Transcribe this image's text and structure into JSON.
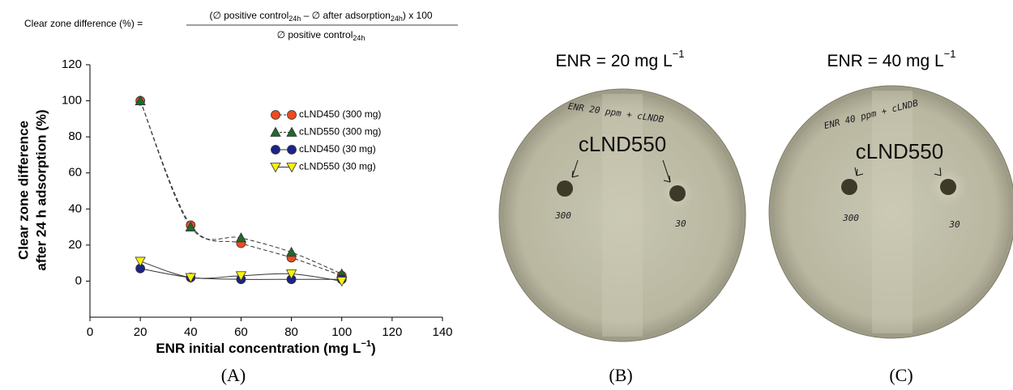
{
  "chart_data": {
    "type": "line",
    "formula": {
      "lhs": "Clear zone difference (%) =",
      "numerator": [
        "(∅ positive control",
        "24h",
        " – ∅ after adsorption",
        "24h",
        ") x 100"
      ],
      "denominator": [
        "∅ positive control",
        "24h"
      ]
    },
    "x_label": [
      "ENR initial concentration (mg L",
      "−1",
      ")"
    ],
    "y_label": [
      "Clear zone difference",
      "after 24 h adsorption (%)"
    ],
    "x": [
      20,
      40,
      60,
      80,
      100
    ],
    "xlim": [
      0,
      140
    ],
    "xticks": [
      0,
      20,
      40,
      60,
      80,
      100,
      120,
      140
    ],
    "ylim": [
      -20,
      120
    ],
    "yticks": [
      0,
      20,
      40,
      60,
      80,
      100,
      120
    ],
    "legend": "upper right",
    "series": [
      {
        "name": "cLND450 (300 mg)",
        "color": "#ee4a1f",
        "marker": "circle",
        "dashed": true,
        "values": [
          100,
          31,
          21,
          13,
          3
        ]
      },
      {
        "name": "cLND550 (300 mg)",
        "color": "#1f6a2c",
        "marker": "triangle",
        "dashed": true,
        "values": [
          100,
          30,
          24,
          16,
          4
        ]
      },
      {
        "name": "cLND450 (30 mg)",
        "color": "#1b2488",
        "marker": "circle",
        "dashed": false,
        "values": [
          7,
          2,
          1,
          1,
          1
        ]
      },
      {
        "name": "cLND550 (30 mg)",
        "color": "#f7f20a",
        "marker": "triangle-down",
        "dashed": false,
        "values": [
          11,
          2,
          3,
          4,
          0
        ]
      }
    ]
  },
  "panels": [
    "(A)",
    "(B)",
    "(C)"
  ],
  "photos": [
    {
      "title": [
        "ENR = 20 mg L",
        "−1"
      ],
      "handwriting": "ENR 20 ppm + cLNDB",
      "label": "cLND550",
      "wells": [
        "300",
        "30"
      ]
    },
    {
      "title": [
        "ENR = 40 mg L",
        "−1"
      ],
      "handwriting": "ENR 40 ppm + cLNDB",
      "label": "cLND550",
      "wells": [
        "300",
        "30"
      ]
    }
  ]
}
